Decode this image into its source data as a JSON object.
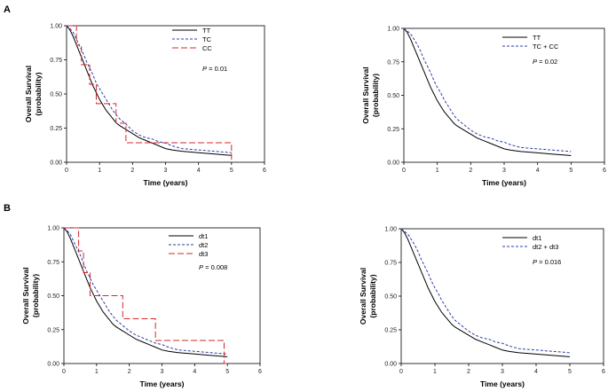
{
  "figure": {
    "panel_labels": [
      "A",
      "B"
    ]
  },
  "chart_data": [
    {
      "type": "line",
      "panel": "A",
      "xlabel": "Time (years)",
      "ylabel_line1": "Overall Survival",
      "ylabel_line2": "(probability)",
      "xlim": [
        0,
        6
      ],
      "ylim": [
        0,
        1
      ],
      "x_ticks": [
        "0",
        "1",
        "2",
        "3",
        "4",
        "5",
        "6"
      ],
      "y_ticks": [
        "0.00",
        "0.25",
        "0.50",
        "0.75",
        "1.00"
      ],
      "p_text": "= 0.01",
      "series": [
        {
          "name": "TT",
          "color": "#000000",
          "dash": "",
          "step": false,
          "x": [
            0,
            0.1,
            0.2,
            0.3,
            0.4,
            0.5,
            0.6,
            0.7,
            0.8,
            0.9,
            1.0,
            1.1,
            1.2,
            1.3,
            1.4,
            1.5,
            1.6,
            1.8,
            2.0,
            2.2,
            2.4,
            2.6,
            2.8,
            3.0,
            3.2,
            3.5,
            4.0,
            4.5,
            5.0
          ],
          "y": [
            1.0,
            0.97,
            0.92,
            0.86,
            0.8,
            0.74,
            0.68,
            0.62,
            0.56,
            0.51,
            0.46,
            0.42,
            0.38,
            0.35,
            0.32,
            0.29,
            0.27,
            0.24,
            0.21,
            0.18,
            0.16,
            0.14,
            0.12,
            0.1,
            0.09,
            0.08,
            0.07,
            0.06,
            0.05
          ]
        },
        {
          "name": "TC",
          "color": "#2b3fa8",
          "dash": "3,2",
          "step": false,
          "x": [
            0,
            0.1,
            0.2,
            0.3,
            0.4,
            0.5,
            0.6,
            0.7,
            0.8,
            0.9,
            1.0,
            1.1,
            1.2,
            1.3,
            1.4,
            1.5,
            1.6,
            1.8,
            2.0,
            2.2,
            2.4,
            2.6,
            2.8,
            3.0,
            3.2,
            3.5,
            4.0,
            4.5,
            5.0
          ],
          "y": [
            1.0,
            0.98,
            0.95,
            0.9,
            0.85,
            0.8,
            0.74,
            0.69,
            0.64,
            0.58,
            0.54,
            0.5,
            0.46,
            0.42,
            0.38,
            0.35,
            0.32,
            0.28,
            0.23,
            0.2,
            0.18,
            0.17,
            0.15,
            0.14,
            0.12,
            0.1,
            0.09,
            0.08,
            0.07
          ]
        },
        {
          "name": "CC",
          "color": "#d62728",
          "dash": "7,3",
          "step": true,
          "x": [
            0,
            0.3,
            0.45,
            0.7,
            0.9,
            1.5,
            1.8,
            2.8,
            4.8,
            5.0
          ],
          "y": [
            1.0,
            0.857,
            0.714,
            0.571,
            0.429,
            0.286,
            0.143,
            0.143,
            0.143,
            0.0
          ]
        }
      ]
    },
    {
      "type": "line",
      "panel": "A",
      "xlabel": "Time (years)",
      "ylabel_line1": "Overall Survival",
      "ylabel_line2": "(probability)",
      "xlim": [
        0,
        6
      ],
      "ylim": [
        0,
        1
      ],
      "x_ticks": [
        "0",
        "1",
        "2",
        "3",
        "4",
        "5",
        "6"
      ],
      "y_ticks": [
        "0.00",
        "0.25",
        "0.50",
        "0.75",
        "1.00"
      ],
      "p_text": "= 0.02",
      "series": [
        {
          "name": "TT",
          "color": "#000000",
          "dash": "",
          "step": false,
          "x": [
            0,
            0.1,
            0.2,
            0.3,
            0.4,
            0.5,
            0.6,
            0.7,
            0.8,
            0.9,
            1.0,
            1.1,
            1.2,
            1.3,
            1.4,
            1.5,
            1.6,
            1.8,
            2.0,
            2.2,
            2.4,
            2.6,
            2.8,
            3.0,
            3.2,
            3.5,
            4.0,
            4.5,
            5.0
          ],
          "y": [
            1.0,
            0.97,
            0.92,
            0.86,
            0.8,
            0.74,
            0.68,
            0.62,
            0.56,
            0.51,
            0.46,
            0.42,
            0.38,
            0.35,
            0.32,
            0.29,
            0.27,
            0.24,
            0.21,
            0.18,
            0.16,
            0.14,
            0.12,
            0.1,
            0.09,
            0.08,
            0.07,
            0.06,
            0.05
          ]
        },
        {
          "name": "TC + CC",
          "color": "#2b3fa8",
          "dash": "3,2",
          "step": false,
          "x": [
            0,
            0.1,
            0.2,
            0.3,
            0.4,
            0.5,
            0.6,
            0.7,
            0.8,
            0.9,
            1.0,
            1.1,
            1.2,
            1.3,
            1.4,
            1.5,
            1.6,
            1.8,
            2.0,
            2.2,
            2.4,
            2.6,
            2.8,
            3.0,
            3.2,
            3.5,
            4.0,
            4.5,
            5.0
          ],
          "y": [
            1.0,
            0.98,
            0.96,
            0.92,
            0.88,
            0.83,
            0.77,
            0.72,
            0.67,
            0.61,
            0.56,
            0.52,
            0.47,
            0.43,
            0.39,
            0.35,
            0.32,
            0.28,
            0.24,
            0.21,
            0.19,
            0.18,
            0.16,
            0.15,
            0.13,
            0.11,
            0.1,
            0.09,
            0.08
          ]
        }
      ]
    },
    {
      "type": "line",
      "panel": "B",
      "xlabel": "Time (years)",
      "ylabel_line1": "Overall Survival",
      "ylabel_line2": "(probability)",
      "xlim": [
        0,
        6
      ],
      "ylim": [
        0,
        1
      ],
      "x_ticks": [
        "0",
        "1",
        "2",
        "3",
        "4",
        "5",
        "6"
      ],
      "y_ticks": [
        "0.00",
        "0.25",
        "0.50",
        "0.75",
        "1.00"
      ],
      "p_text": "= 0.008",
      "series": [
        {
          "name": "dt1",
          "color": "#000000",
          "dash": "",
          "step": false,
          "x": [
            0,
            0.1,
            0.2,
            0.3,
            0.4,
            0.5,
            0.6,
            0.7,
            0.8,
            0.9,
            1.0,
            1.1,
            1.2,
            1.3,
            1.4,
            1.5,
            1.6,
            1.8,
            2.0,
            2.2,
            2.4,
            2.6,
            2.8,
            3.0,
            3.2,
            3.5,
            4.0,
            4.5,
            5.0
          ],
          "y": [
            1.0,
            0.97,
            0.92,
            0.86,
            0.8,
            0.74,
            0.68,
            0.62,
            0.56,
            0.51,
            0.46,
            0.42,
            0.38,
            0.35,
            0.32,
            0.29,
            0.27,
            0.24,
            0.21,
            0.18,
            0.16,
            0.14,
            0.12,
            0.1,
            0.09,
            0.08,
            0.07,
            0.06,
            0.05
          ]
        },
        {
          "name": "dt2",
          "color": "#2b3fa8",
          "dash": "3,2",
          "step": false,
          "x": [
            0,
            0.1,
            0.2,
            0.3,
            0.4,
            0.5,
            0.6,
            0.7,
            0.8,
            0.9,
            1.0,
            1.1,
            1.2,
            1.3,
            1.4,
            1.5,
            1.6,
            1.8,
            2.0,
            2.2,
            2.4,
            2.6,
            2.8,
            3.0,
            3.2,
            3.5,
            4.0,
            4.5,
            5.0
          ],
          "y": [
            1.0,
            0.98,
            0.95,
            0.9,
            0.85,
            0.8,
            0.74,
            0.68,
            0.63,
            0.58,
            0.54,
            0.5,
            0.46,
            0.42,
            0.38,
            0.35,
            0.32,
            0.28,
            0.24,
            0.21,
            0.19,
            0.17,
            0.15,
            0.14,
            0.12,
            0.1,
            0.09,
            0.08,
            0.07
          ]
        },
        {
          "name": "dt3",
          "color": "#d62728",
          "dash": "7,3",
          "step": true,
          "x": [
            0,
            0.45,
            0.6,
            0.8,
            1.0,
            1.8,
            2.8,
            4.9,
            5.0
          ],
          "y": [
            1.0,
            0.83,
            0.67,
            0.5,
            0.5,
            0.33,
            0.17,
            0.0,
            0.0
          ]
        }
      ]
    },
    {
      "type": "line",
      "panel": "B",
      "xlabel": "Time (years)",
      "ylabel_line1": "Overall Survival",
      "ylabel_line2": "(probability)",
      "xlim": [
        0,
        6
      ],
      "ylim": [
        0,
        1
      ],
      "x_ticks": [
        "0",
        "1",
        "2",
        "3",
        "4",
        "5",
        "6"
      ],
      "y_ticks": [
        "0.00",
        "0.25",
        "0.50",
        "0.75",
        "1.00"
      ],
      "p_text": "= 0.016",
      "series": [
        {
          "name": "dt1",
          "color": "#000000",
          "dash": "",
          "step": false,
          "x": [
            0,
            0.1,
            0.2,
            0.3,
            0.4,
            0.5,
            0.6,
            0.7,
            0.8,
            0.9,
            1.0,
            1.1,
            1.2,
            1.3,
            1.4,
            1.5,
            1.6,
            1.8,
            2.0,
            2.2,
            2.4,
            2.6,
            2.8,
            3.0,
            3.2,
            3.5,
            4.0,
            4.5,
            5.0
          ],
          "y": [
            1.0,
            0.97,
            0.92,
            0.86,
            0.8,
            0.74,
            0.68,
            0.62,
            0.56,
            0.51,
            0.46,
            0.42,
            0.38,
            0.35,
            0.32,
            0.29,
            0.27,
            0.24,
            0.21,
            0.18,
            0.16,
            0.14,
            0.12,
            0.1,
            0.09,
            0.08,
            0.07,
            0.06,
            0.05
          ]
        },
        {
          "name": "dt2 + dt3",
          "color": "#2b3fa8",
          "dash": "3,2",
          "step": false,
          "x": [
            0,
            0.1,
            0.2,
            0.3,
            0.4,
            0.5,
            0.6,
            0.7,
            0.8,
            0.9,
            1.0,
            1.1,
            1.2,
            1.3,
            1.4,
            1.5,
            1.6,
            1.8,
            2.0,
            2.2,
            2.4,
            2.6,
            2.8,
            3.0,
            3.2,
            3.5,
            4.0,
            4.5,
            5.0
          ],
          "y": [
            1.0,
            0.98,
            0.96,
            0.92,
            0.88,
            0.83,
            0.77,
            0.72,
            0.67,
            0.61,
            0.56,
            0.52,
            0.47,
            0.43,
            0.39,
            0.35,
            0.32,
            0.28,
            0.24,
            0.21,
            0.19,
            0.18,
            0.16,
            0.15,
            0.13,
            0.11,
            0.1,
            0.09,
            0.08
          ]
        }
      ]
    }
  ]
}
